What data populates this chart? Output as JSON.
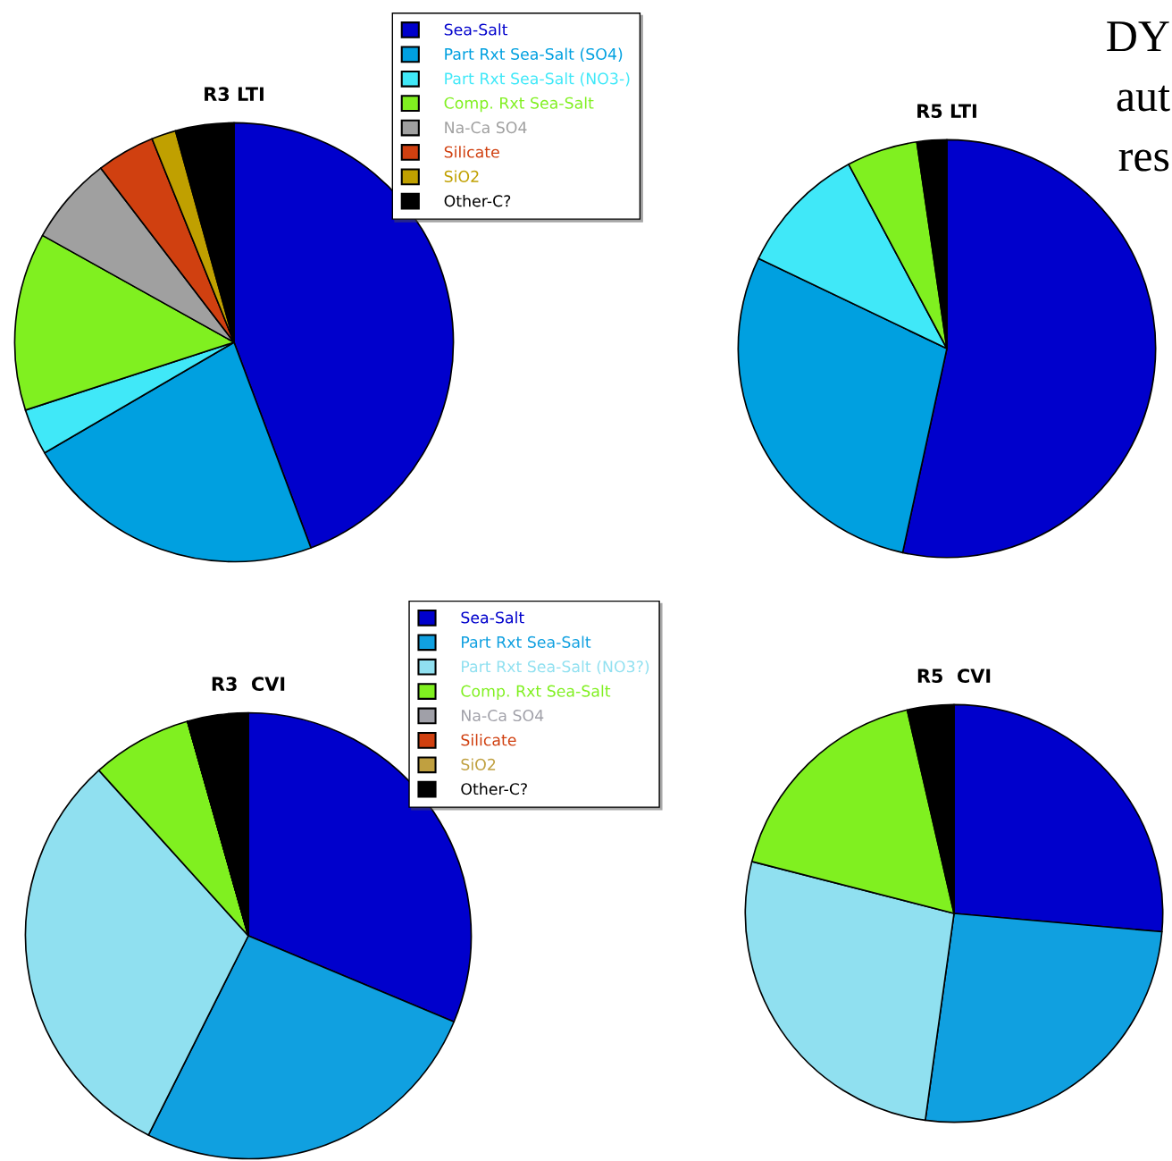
{
  "chart_data": [
    {
      "type": "pie",
      "title": "R3 LTI",
      "categories": [
        "Sea-Salt",
        "Part Rxt Sea-Salt (SO4)",
        "Part Rxt Sea-Salt (NO3-)",
        "Comp. Rxt Sea-Salt",
        "Na-Ca SO4",
        "Silicate",
        "SiO2",
        "Other-C?"
      ],
      "values": [
        44.3,
        22.3,
        3.4,
        13.1,
        6.5,
        4.3,
        1.8,
        4.3
      ],
      "colors": [
        "#0000cc",
        "#00a0e0",
        "#40e8f8",
        "#80f020",
        "#a0a0a0",
        "#d04010",
        "#c0a000",
        "#000000"
      ],
      "legend": "top right"
    },
    {
      "type": "pie",
      "title": "R5 LTI",
      "categories": [
        null,
        null,
        null,
        null,
        null
      ],
      "values": [
        53.4,
        28.7,
        10.1,
        5.5,
        2.3
      ],
      "colors": [
        "#0000cc",
        "#00a0e0",
        "#40e8f8",
        "#80f020",
        "#000000"
      ],
      "annotations": [
        "DY",
        "aut",
        "res"
      ]
    },
    {
      "type": "pie",
      "title": "R3  CVI",
      "categories": [
        "Sea-Salt",
        "Part Rxt Sea-Salt",
        "Part Rxt Sea-Salt (NO3?)",
        "Comp. Rxt Sea-Salt",
        "Na-Ca SO4",
        "Silicate",
        "SiO2",
        "Other-C?"
      ],
      "values": [
        31.3,
        26.1,
        30.9,
        7.3,
        0,
        0,
        0,
        4.4
      ],
      "colors": [
        "#0000cc",
        "#10a0e0",
        "#90e0f0",
        "#80f020",
        "#a0a0a8",
        "#d04010",
        "#c0a040",
        "#000000"
      ],
      "legend": "top right"
    },
    {
      "type": "pie",
      "title": "R5  CVI",
      "categories": [
        null,
        null,
        null,
        null,
        null
      ],
      "values": [
        26.4,
        25.8,
        26.8,
        17.4,
        3.6
      ],
      "colors": [
        "#0000cc",
        "#10a0e0",
        "#90e0f0",
        "#80f020",
        "#000000"
      ]
    }
  ]
}
